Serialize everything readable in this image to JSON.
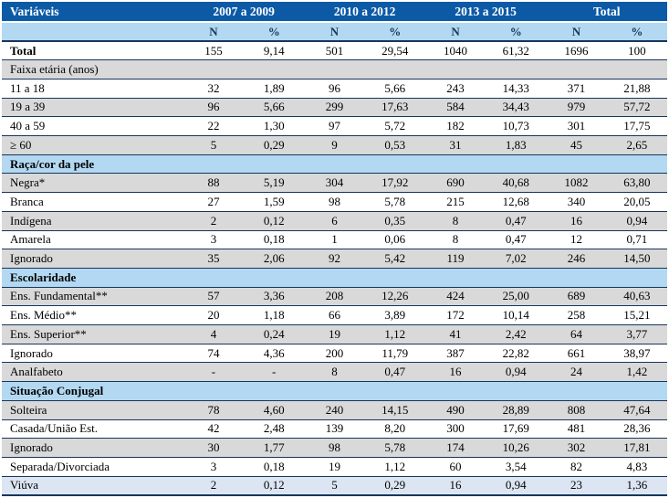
{
  "header": {
    "variable_col": "Variáveis",
    "period_groups": [
      "2007 a 2009",
      "2010 a 2012",
      "2013  a 2015",
      "Total"
    ],
    "sub_row": [
      "N",
      "%",
      "N",
      "%",
      "N",
      "%",
      "N",
      "%"
    ]
  },
  "rows": [
    {
      "label": "Total",
      "style": "total",
      "values": [
        "155",
        "9,14",
        "501",
        "29,54",
        "1040",
        "61,32",
        "1696",
        "100"
      ]
    },
    {
      "label": "Faixa etária (anos)",
      "style": "section-gray",
      "values": []
    },
    {
      "label": "11 a 18",
      "style": "white",
      "values": [
        "32",
        "1,89",
        "96",
        "5,66",
        "243",
        "14,33",
        "371",
        "21,88"
      ]
    },
    {
      "label": "19 a 39",
      "style": "gray",
      "values": [
        "96",
        "5,66",
        "299",
        "17,63",
        "584",
        "34,43",
        "979",
        "57,72"
      ]
    },
    {
      "label": "40 a 59",
      "style": "white",
      "values": [
        "22",
        "1,30",
        "97",
        "5,72",
        "182",
        "10,73",
        "301",
        "17,75"
      ]
    },
    {
      "label": "≥ 60",
      "style": "gray",
      "values": [
        "5",
        "0,29",
        "9",
        "0,53",
        "31",
        "1,83",
        "45",
        "2,65"
      ]
    },
    {
      "label": "Raça/cor da pele",
      "style": "section-blue",
      "values": []
    },
    {
      "label": "Negra*",
      "style": "gray",
      "values": [
        "88",
        "5,19",
        "304",
        "17,92",
        "690",
        "40,68",
        "1082",
        "63,80"
      ]
    },
    {
      "label": "Branca",
      "style": "white",
      "values": [
        "27",
        "1,59",
        "98",
        "5,78",
        "215",
        "12,68",
        "340",
        "20,05"
      ]
    },
    {
      "label": "Indígena",
      "style": "gray",
      "values": [
        "2",
        "0,12",
        "6",
        "0,35",
        "8",
        "0,47",
        "16",
        "0,94"
      ]
    },
    {
      "label": "Amarela",
      "style": "white",
      "values": [
        "3",
        "0,18",
        "1",
        "0,06",
        "8",
        "0,47",
        "12",
        "0,71"
      ]
    },
    {
      "label": "Ignorado",
      "style": "gray",
      "values": [
        "35",
        "2,06",
        "92",
        "5,42",
        "119",
        "7,02",
        "246",
        "14,50"
      ]
    },
    {
      "label": "Escolaridade",
      "style": "section-blue",
      "values": []
    },
    {
      "label": "Ens. Fundamental**",
      "style": "gray",
      "values": [
        "57",
        "3,36",
        "208",
        "12,26",
        "424",
        "25,00",
        "689",
        "40,63"
      ]
    },
    {
      "label": "Ens. Médio**",
      "style": "white",
      "values": [
        "20",
        "1,18",
        "66",
        "3,89",
        "172",
        "10,14",
        "258",
        "15,21"
      ]
    },
    {
      "label": "Ens. Superior**",
      "style": "gray",
      "values": [
        "4",
        "0,24",
        "19",
        "1,12",
        "41",
        "2,42",
        "64",
        "3,77"
      ]
    },
    {
      "label": "Ignorado",
      "style": "white",
      "values": [
        "74",
        "4,36",
        "200",
        "11,79",
        "387",
        "22,82",
        "661",
        "38,97"
      ]
    },
    {
      "label": "Analfabeto",
      "style": "gray",
      "values": [
        "-",
        "-",
        "8",
        "0,47",
        "16",
        "0,94",
        "24",
        "1,42"
      ]
    },
    {
      "label": "Situação Conjugal",
      "style": "section-blue",
      "values": []
    },
    {
      "label": "Solteira",
      "style": "gray",
      "values": [
        "78",
        "4,60",
        "240",
        "14,15",
        "490",
        "28,89",
        "808",
        "47,64"
      ]
    },
    {
      "label": "Casada/União Est.",
      "style": "white",
      "values": [
        "42",
        "2,48",
        "139",
        "8,20",
        "300",
        "17,69",
        "481",
        "28,36"
      ]
    },
    {
      "label": "Ignorado",
      "style": "gray",
      "values": [
        "30",
        "1,77",
        "98",
        "5,78",
        "174",
        "10,26",
        "302",
        "17,81"
      ]
    },
    {
      "label": "Separada/Divorciada",
      "style": "white",
      "values": [
        "3",
        "0,18",
        "19",
        "1,12",
        "60",
        "3,54",
        "82",
        "4,83"
      ]
    },
    {
      "label": "Viúva",
      "style": "lightblue",
      "values": [
        "2",
        "0,12",
        "5",
        "0,29",
        "16",
        "0,94",
        "23",
        "1,36"
      ]
    }
  ],
  "colors": {
    "header_bg": "#0c5aa6",
    "header_text": "#ffffff",
    "subheader_text": "#17365d",
    "section_bg": "#b3d9f2",
    "gray_row_bg": "#d9d9d9",
    "lightblue_row_bg": "#dce6f2",
    "line": "#17365d"
  }
}
